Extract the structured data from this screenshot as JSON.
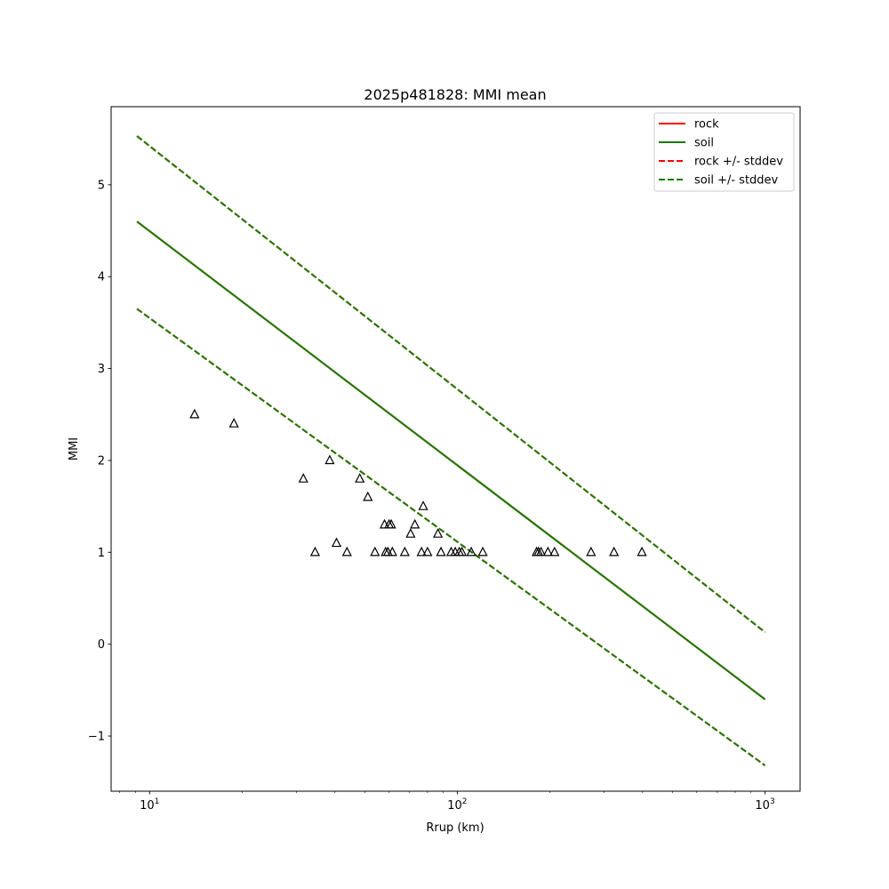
{
  "chart_data": {
    "type": "line",
    "title": "2025p481828: MMI mean",
    "xlabel": "Rrup (km)",
    "ylabel": "MMI",
    "xscale": "log",
    "xlim": [
      7.5,
      1300
    ],
    "ylim": [
      -1.6,
      5.85
    ],
    "x_ticks": [
      {
        "value": 10,
        "base": "10",
        "exp": "1"
      },
      {
        "value": 100,
        "base": "10",
        "exp": "2"
      },
      {
        "value": 1000,
        "base": "10",
        "exp": "3"
      }
    ],
    "y_ticks": [
      {
        "value": -1,
        "label": "−1"
      },
      {
        "value": 0,
        "label": "0"
      },
      {
        "value": 1,
        "label": "1"
      },
      {
        "value": 2,
        "label": "2"
      },
      {
        "value": 3,
        "label": "3"
      },
      {
        "value": 4,
        "label": "4"
      },
      {
        "value": 5,
        "label": "5"
      }
    ],
    "grid": false,
    "legend_position": "top-right",
    "series": [
      {
        "name": "rock",
        "color": "#ff0000",
        "style": "solid",
        "x": [
          9.1,
          1000
        ],
        "y": [
          4.6,
          -0.6
        ]
      },
      {
        "name": "soil",
        "color": "#1a7a00",
        "style": "solid",
        "x": [
          9.1,
          1000
        ],
        "y": [
          4.6,
          -0.6
        ]
      },
      {
        "name": "rock +/- stddev",
        "color": "#ff0000",
        "style": "dashed",
        "x": [
          9.1,
          1000
        ],
        "y": [
          5.53,
          0.13
        ],
        "y2": [
          3.65,
          -1.32
        ]
      },
      {
        "name": "soil +/- stddev",
        "color": "#1a7a00",
        "style": "dashed",
        "x": [
          9.1,
          1000
        ],
        "y": [
          5.53,
          0.13
        ],
        "y2": [
          3.65,
          -1.32
        ]
      }
    ],
    "observations": {
      "marker": "triangle",
      "color": "#000000",
      "points": [
        [
          14.0,
          2.5
        ],
        [
          18.8,
          2.4
        ],
        [
          31.6,
          1.8
        ],
        [
          34.5,
          1.0
        ],
        [
          38.5,
          2.0
        ],
        [
          40.5,
          1.1
        ],
        [
          43.8,
          1.0
        ],
        [
          48.2,
          1.8
        ],
        [
          51.2,
          1.6
        ],
        [
          54.0,
          1.0
        ],
        [
          58.0,
          1.3
        ],
        [
          58.5,
          1.0
        ],
        [
          59.5,
          1.0
        ],
        [
          60.0,
          1.3
        ],
        [
          61.0,
          1.3
        ],
        [
          61.5,
          1.0
        ],
        [
          67.5,
          1.0
        ],
        [
          70.5,
          1.2
        ],
        [
          72.8,
          1.3
        ],
        [
          76.5,
          1.0
        ],
        [
          77.5,
          1.5
        ],
        [
          80.0,
          1.0
        ],
        [
          86.5,
          1.2
        ],
        [
          88.5,
          1.0
        ],
        [
          95.5,
          1.0
        ],
        [
          98.5,
          1.0
        ],
        [
          101.5,
          1.0
        ],
        [
          103.5,
          1.0
        ],
        [
          111.0,
          1.0
        ],
        [
          121.0,
          1.0
        ],
        [
          181.0,
          1.0
        ],
        [
          183.5,
          1.0
        ],
        [
          187.0,
          1.0
        ],
        [
          197.0,
          1.0
        ],
        [
          207.0,
          1.0
        ],
        [
          272.0,
          1.0
        ],
        [
          323.0,
          1.0
        ],
        [
          398.0,
          1.0
        ]
      ]
    }
  }
}
